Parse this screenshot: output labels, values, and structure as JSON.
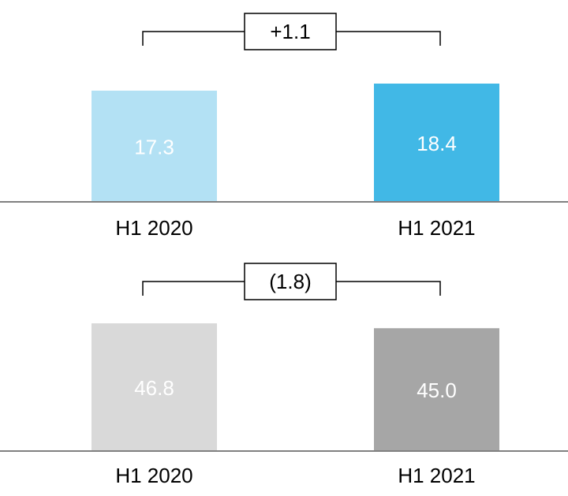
{
  "chart_data": [
    {
      "type": "bar",
      "categories": [
        "H1 2020",
        "H1 2021"
      ],
      "values": [
        17.3,
        18.4
      ],
      "value_labels": [
        "17.3",
        "18.4"
      ],
      "colors": [
        "#b3e1f4",
        "#41b8e6"
      ],
      "change_label": "+1.1",
      "title": "",
      "xlabel": "",
      "ylabel": "",
      "grid": false,
      "legend": "none"
    },
    {
      "type": "bar",
      "categories": [
        "H1 2020",
        "H1 2021"
      ],
      "values": [
        46.8,
        45.0
      ],
      "value_labels": [
        "46.8",
        "45.0"
      ],
      "colors": [
        "#d9d9d9",
        "#a6a6a6"
      ],
      "change_label": "(1.8)",
      "title": "",
      "xlabel": "",
      "ylabel": "",
      "grid": false,
      "legend": "none"
    }
  ],
  "colors": {
    "baseline": "#808080",
    "bracket": "#000000",
    "value_label": "#ffffff",
    "category_label": "#000000"
  }
}
